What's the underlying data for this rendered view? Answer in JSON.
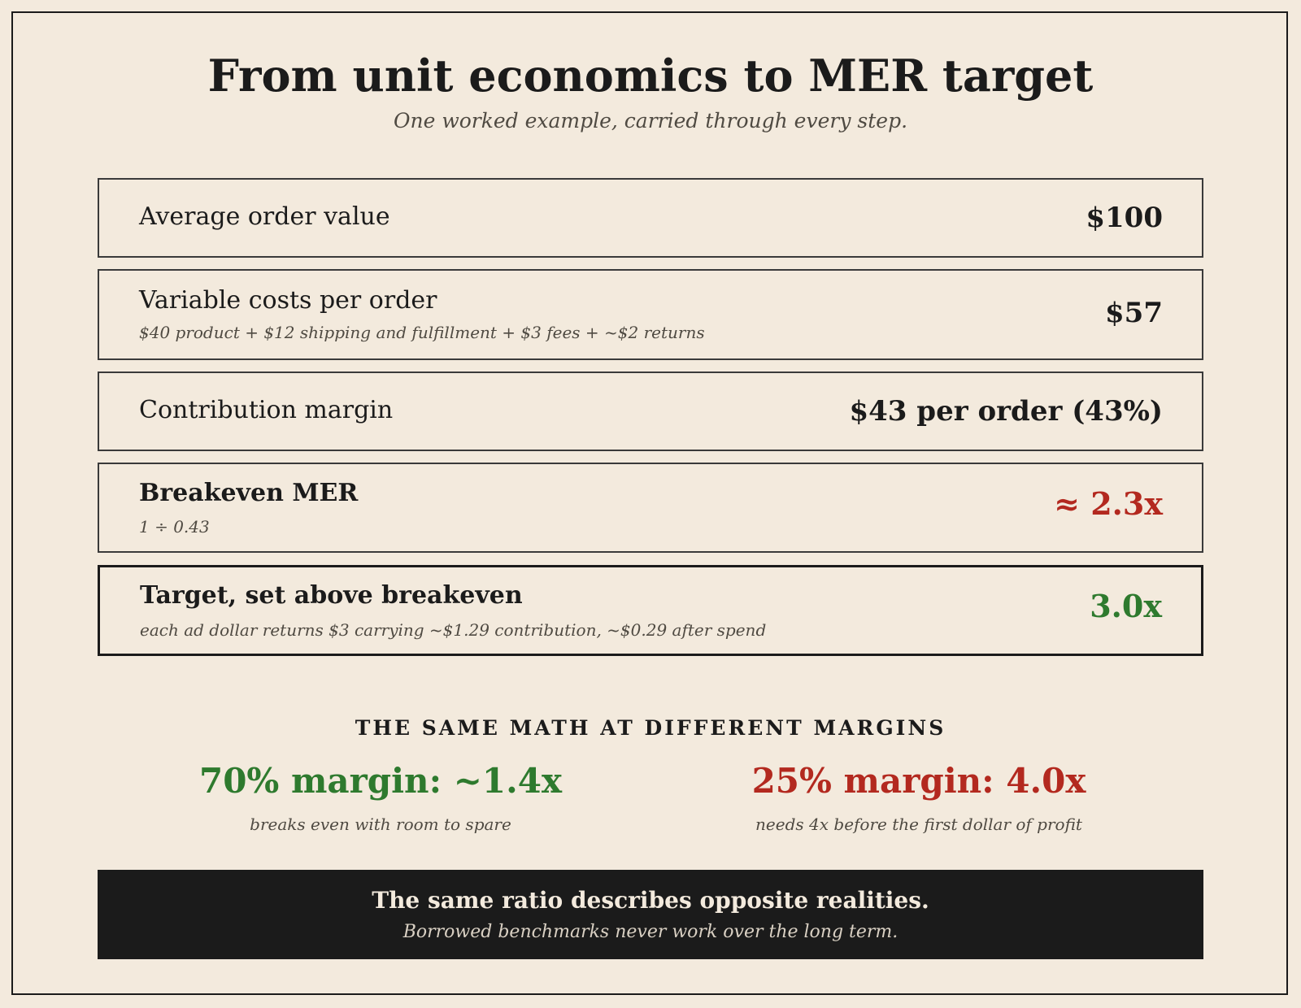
{
  "header": {
    "title": "From unit economics to MER target",
    "subtitle": "One worked example, carried through every step."
  },
  "steps": [
    {
      "label": "Average order value",
      "detail": "",
      "value": "$100"
    },
    {
      "label": "Variable costs per order",
      "detail": "$40 product + $12 shipping and fulfillment + $3 fees + ~$2 returns",
      "value": "$57"
    },
    {
      "label": "Contribution margin",
      "detail": "",
      "value": "$43 per order (43%)"
    },
    {
      "label": "Breakeven MER",
      "detail": "1 ÷ 0.43",
      "value": "≈ 2.3x",
      "value_color": "#b3291f"
    },
    {
      "label": "Target, set above breakeven",
      "detail": "each ad dollar returns $3 carrying ~$1.29 contribution, ~$0.29 after spend",
      "value": "3.0x",
      "value_color": "#2e7a2e"
    }
  ],
  "comparison": {
    "heading": "THE SAME MATH AT DIFFERENT MARGINS",
    "items": [
      {
        "headline": "70% margin: ~1.4x",
        "note": "breaks even with room to spare",
        "color": "#2e7a2e"
      },
      {
        "headline": "25% margin: 4.0x",
        "note": "needs 4x before the first dollar of profit",
        "color": "#b3291f"
      }
    ]
  },
  "banner": {
    "main": "The same ratio describes opposite realities.",
    "sub": "Borrowed benchmarks never work over the long term."
  }
}
